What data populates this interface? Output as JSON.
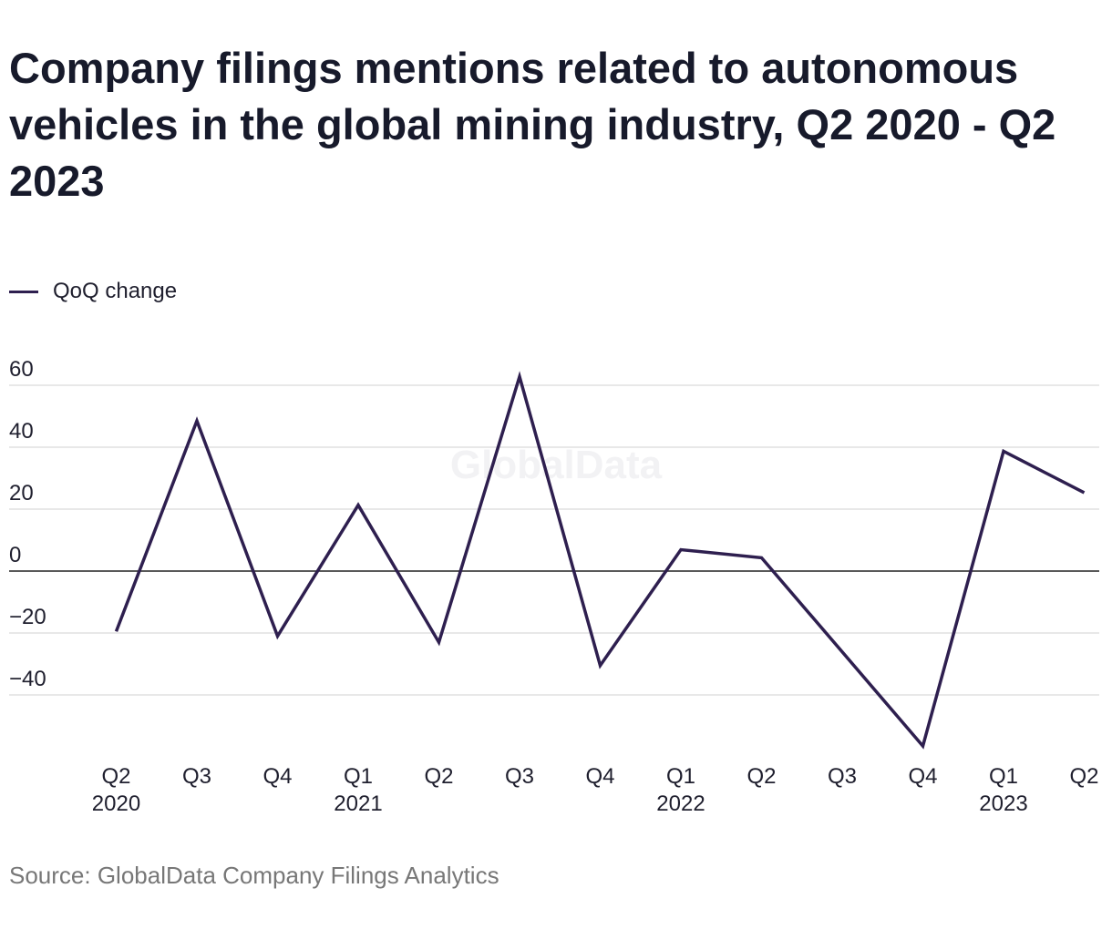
{
  "title": "Company filings mentions related to autonomous vehicles in the global mining industry, Q2 2020 - Q2 2023",
  "source": "Source: GlobalData Company Filings Analytics",
  "watermark": "GlobalData",
  "colors": {
    "line": "#2e1f4f",
    "grid": "#d9d9d9",
    "zero": "#222222",
    "text": "#1f1f2e"
  },
  "chart_data": {
    "type": "line",
    "categories": [
      "Q2 2020",
      "Q3 2020",
      "Q4 2020",
      "Q1 2021",
      "Q2 2021",
      "Q3 2021",
      "Q4 2021",
      "Q1 2022",
      "Q2 2022",
      "Q3 2022",
      "Q4 2022",
      "Q1 2023",
      "Q2 2023"
    ],
    "tick_labels": [
      [
        "Q2",
        "2020"
      ],
      [
        "Q3",
        ""
      ],
      [
        "Q4",
        ""
      ],
      [
        "Q1",
        "2021"
      ],
      [
        "Q2",
        ""
      ],
      [
        "Q3",
        ""
      ],
      [
        "Q4",
        ""
      ],
      [
        "Q1",
        "2022"
      ],
      [
        "Q2",
        ""
      ],
      [
        "Q3",
        ""
      ],
      [
        "Q4",
        ""
      ],
      [
        "Q1",
        "2023"
      ],
      [
        "Q2",
        ""
      ]
    ],
    "series": [
      {
        "name": "QoQ change",
        "values": [
          -19.5,
          48.5,
          -21,
          21.3,
          -23,
          62.8,
          -30.5,
          6.9,
          4.3,
          null,
          -56.5,
          38.7,
          25.3
        ]
      }
    ],
    "yticks": [
      60,
      40,
      20,
      0,
      -20,
      -40
    ],
    "ytick_labels": [
      "60",
      "40",
      "20",
      "0",
      "−20",
      "−40"
    ],
    "ylim": [
      -60,
      65
    ],
    "grid": true,
    "legend": "top-left"
  }
}
